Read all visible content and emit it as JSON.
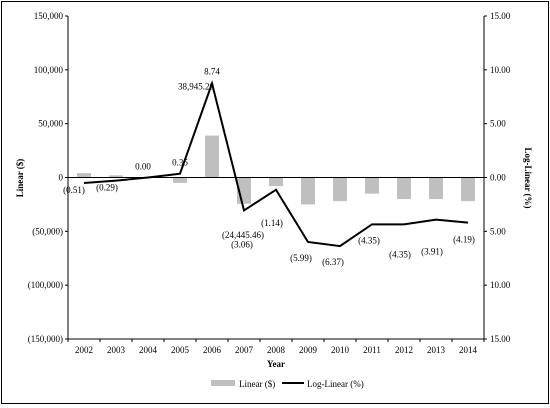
{
  "chart_data": {
    "type": "bar+line",
    "xlabel": "Year",
    "ylabel_left": "Linear ($)",
    "ylabel_right": "Log-Linear (%)",
    "ylim_left": [
      -150000,
      150000
    ],
    "ylim_right": [
      -15,
      15
    ],
    "right_axis_inverted": true,
    "categories": [
      "2002",
      "2003",
      "2004",
      "2005",
      "2006",
      "2007",
      "2008",
      "2009",
      "2010",
      "2011",
      "2012",
      "2013",
      "2014"
    ],
    "left_ticks": [
      "150,000",
      "100,000",
      "50,000",
      "0",
      "(50,000)",
      "(100,000)",
      "(150,000)"
    ],
    "right_ticks": [
      "15.00",
      "10.00",
      "5.00",
      "0.00",
      "5.00",
      "10.00",
      "15.00"
    ],
    "series": [
      {
        "name": "Linear ($)",
        "type": "bar",
        "axis": "left",
        "color": "#bfbfbf",
        "values": [
          4000,
          2000,
          0,
          -5000,
          38945.2,
          -24445.46,
          -8000,
          -25000,
          -22000,
          -15000,
          -20000,
          -20000,
          -22000
        ]
      },
      {
        "name": "Log-Linear (%)",
        "type": "line",
        "axis": "right",
        "color": "#000000",
        "values": [
          -0.51,
          -0.29,
          0.0,
          0.35,
          8.74,
          -3.06,
          -1.14,
          -5.99,
          -6.37,
          -4.35,
          -4.35,
          -3.91,
          -4.19
        ]
      }
    ],
    "annotations": [
      {
        "text": "(0.51)",
        "i": 0
      },
      {
        "text": "(0.29)",
        "i": 1
      },
      {
        "text": "0.00",
        "i": 2
      },
      {
        "text": "0.35",
        "i": 3
      },
      {
        "text": "8.74",
        "i": 4
      },
      {
        "text": "38,945.20",
        "i": 4
      },
      {
        "text": "(24,445.46)",
        "i": 5
      },
      {
        "text": "(3.06)",
        "i": 5
      },
      {
        "text": "(1.14)",
        "i": 6
      },
      {
        "text": "(5.99)",
        "i": 7
      },
      {
        "text": "(6.37)",
        "i": 8
      },
      {
        "text": "(4.35)",
        "i": 9
      },
      {
        "text": "(4.35)",
        "i": 10
      },
      {
        "text": "(3.91)",
        "i": 11
      },
      {
        "text": "(4.19)",
        "i": 12
      }
    ],
    "legend": {
      "placement": "bottom",
      "items": [
        "Linear ($)",
        "Log-Linear (%)"
      ]
    }
  }
}
